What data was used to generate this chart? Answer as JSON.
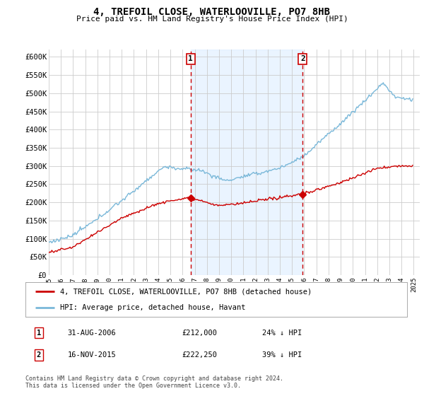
{
  "title": "4, TREFOIL CLOSE, WATERLOOVILLE, PO7 8HB",
  "subtitle": "Price paid vs. HM Land Registry's House Price Index (HPI)",
  "legend_line1": "4, TREFOIL CLOSE, WATERLOOVILLE, PO7 8HB (detached house)",
  "legend_line2": "HPI: Average price, detached house, Havant",
  "annotation1_date": "31-AUG-2006",
  "annotation1_price": "£212,000",
  "annotation1_hpi": "24% ↓ HPI",
  "annotation2_date": "16-NOV-2015",
  "annotation2_price": "£222,250",
  "annotation2_hpi": "39% ↓ HPI",
  "footnote1": "Contains HM Land Registry data © Crown copyright and database right 2024.",
  "footnote2": "This data is licensed under the Open Government Licence v3.0.",
  "hpi_color": "#7ab8d9",
  "price_color": "#cc0000",
  "vline_color": "#cc0000",
  "bg_shaded_color": "#ddeeff",
  "ylim_min": 0,
  "ylim_max": 620000,
  "sale1_year": 2006.667,
  "sale1_price": 212000,
  "sale2_year": 2015.875,
  "sale2_price": 222250,
  "xlim_min": 1995,
  "xlim_max": 2025.5
}
